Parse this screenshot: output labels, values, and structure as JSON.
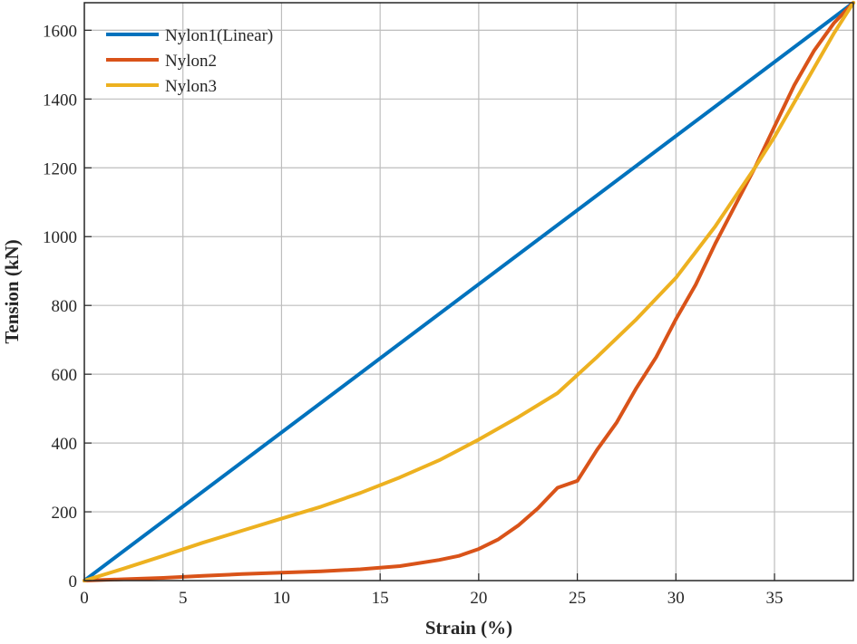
{
  "chart_data": {
    "type": "line",
    "xlabel": "Strain (%)",
    "ylabel": "Tension (kN)",
    "xlim": [
      0,
      39
    ],
    "ylim": [
      0,
      1680
    ],
    "xticks": [
      0,
      5,
      10,
      15,
      20,
      25,
      30,
      35
    ],
    "yticks": [
      0,
      200,
      400,
      600,
      800,
      1000,
      1200,
      1400,
      1600
    ],
    "grid": true,
    "legend_position": "top-left",
    "series": [
      {
        "name": "Nylon1(Linear)",
        "color": "#0072BD",
        "x": [
          0,
          39
        ],
        "y": [
          0,
          1680
        ]
      },
      {
        "name": "Nylon2",
        "color": "#D95319",
        "x": [
          0,
          2,
          4,
          6,
          8,
          10,
          12,
          14,
          16,
          18,
          19,
          20,
          21,
          22,
          23,
          24,
          25,
          26,
          27,
          28,
          29,
          30,
          31,
          32,
          33,
          34,
          35,
          36,
          37,
          38,
          39
        ],
        "y": [
          0,
          4,
          8,
          14,
          19,
          23,
          27,
          33,
          42,
          60,
          72,
          92,
          120,
          160,
          210,
          270,
          290,
          380,
          460,
          560,
          650,
          760,
          860,
          980,
          1090,
          1200,
          1320,
          1440,
          1540,
          1620,
          1680
        ]
      },
      {
        "name": "Nylon3",
        "color": "#EDB120",
        "x": [
          0,
          2,
          4,
          6,
          8,
          10,
          12,
          14,
          16,
          18,
          20,
          22,
          24,
          26,
          28,
          30,
          32,
          34,
          35,
          36,
          37,
          38,
          39
        ],
        "y": [
          0,
          35,
          72,
          110,
          145,
          180,
          215,
          255,
          300,
          350,
          410,
          475,
          545,
          650,
          760,
          880,
          1030,
          1200,
          1290,
          1390,
          1490,
          1590,
          1680
        ]
      }
    ]
  }
}
